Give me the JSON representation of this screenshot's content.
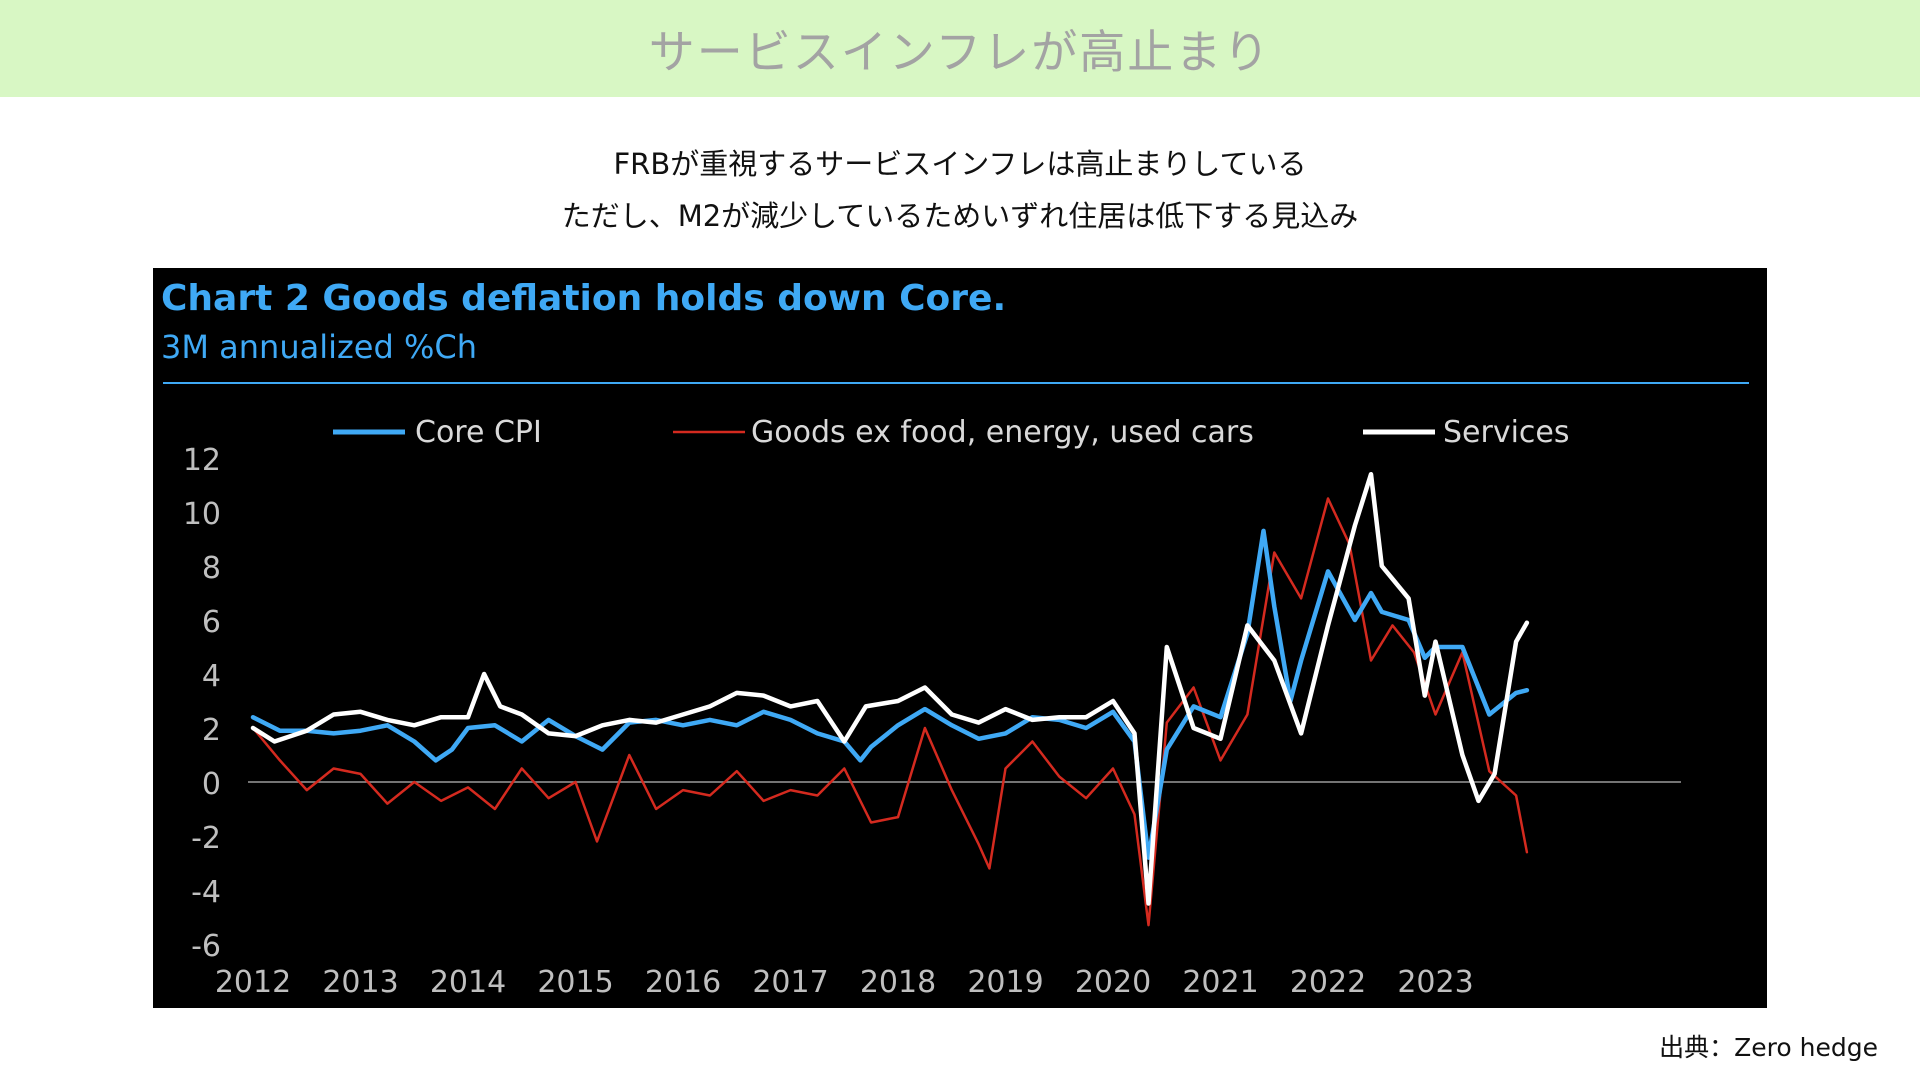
{
  "banner": {
    "title": "サービスインフレが高止まり"
  },
  "subtitles": {
    "line1": "FRBが重視するサービスインフレは高止まりしている",
    "line2": "ただし、M2が減少しているためいずれ住居は低下する見込み"
  },
  "source": "出典：Zero hedge",
  "colors": {
    "banner_bg": "#d8f7c4",
    "chart_bg": "#000000",
    "title_blue": "#3fa9f5",
    "core_cpi": "#3fa9f5",
    "goods": "#d42a1f",
    "services": "#ffffff"
  },
  "chart_data": {
    "type": "line",
    "title": "Chart 2 Goods deflation holds down Core.",
    "subtitle": "3M annualized %Ch",
    "ylim": [
      -6,
      12
    ],
    "yticks": [
      "12",
      "10",
      "8",
      "6",
      "4",
      "2",
      "0",
      "-2",
      "-4",
      "-6"
    ],
    "xlim": [
      2012,
      2024
    ],
    "xticks": [
      "2012",
      "2013",
      "2014",
      "2015",
      "2016",
      "2017",
      "2018",
      "2019",
      "2020",
      "2021",
      "2022",
      "2023"
    ],
    "legend_position": "top",
    "grid": false,
    "zero_line": true,
    "series": [
      {
        "name": "Core CPI",
        "color": "#3fa9f5",
        "points": [
          [
            2012.0,
            2.4
          ],
          [
            2012.25,
            1.9
          ],
          [
            2012.5,
            1.9
          ],
          [
            2012.75,
            1.8
          ],
          [
            2013.0,
            1.9
          ],
          [
            2013.25,
            2.1
          ],
          [
            2013.5,
            1.5
          ],
          [
            2013.7,
            0.8
          ],
          [
            2013.85,
            1.2
          ],
          [
            2014.0,
            2.0
          ],
          [
            2014.25,
            2.1
          ],
          [
            2014.5,
            1.5
          ],
          [
            2014.75,
            2.3
          ],
          [
            2015.0,
            1.7
          ],
          [
            2015.25,
            1.2
          ],
          [
            2015.5,
            2.2
          ],
          [
            2015.75,
            2.3
          ],
          [
            2016.0,
            2.1
          ],
          [
            2016.25,
            2.3
          ],
          [
            2016.5,
            2.1
          ],
          [
            2016.75,
            2.6
          ],
          [
            2017.0,
            2.3
          ],
          [
            2017.25,
            1.8
          ],
          [
            2017.5,
            1.5
          ],
          [
            2017.65,
            0.8
          ],
          [
            2017.75,
            1.3
          ],
          [
            2018.0,
            2.1
          ],
          [
            2018.25,
            2.7
          ],
          [
            2018.5,
            2.1
          ],
          [
            2018.75,
            1.6
          ],
          [
            2019.0,
            1.8
          ],
          [
            2019.25,
            2.4
          ],
          [
            2019.5,
            2.3
          ],
          [
            2019.75,
            2.0
          ],
          [
            2020.0,
            2.6
          ],
          [
            2020.2,
            1.5
          ],
          [
            2020.33,
            -2.8
          ],
          [
            2020.5,
            1.2
          ],
          [
            2020.75,
            2.8
          ],
          [
            2021.0,
            2.4
          ],
          [
            2021.25,
            5.5
          ],
          [
            2021.4,
            9.3
          ],
          [
            2021.5,
            6.5
          ],
          [
            2021.65,
            3.0
          ],
          [
            2021.75,
            4.5
          ],
          [
            2022.0,
            7.8
          ],
          [
            2022.25,
            6.0
          ],
          [
            2022.4,
            7.0
          ],
          [
            2022.5,
            6.3
          ],
          [
            2022.75,
            6.0
          ],
          [
            2022.9,
            4.6
          ],
          [
            2023.0,
            5.0
          ],
          [
            2023.25,
            5.0
          ],
          [
            2023.5,
            2.5
          ],
          [
            2023.75,
            3.3
          ],
          [
            2023.85,
            3.4
          ]
        ]
      },
      {
        "name": "Goods ex food, energy, used cars",
        "color": "#d42a1f",
        "points": [
          [
            2012.0,
            2.0
          ],
          [
            2012.25,
            0.8
          ],
          [
            2012.5,
            -0.3
          ],
          [
            2012.75,
            0.5
          ],
          [
            2013.0,
            0.3
          ],
          [
            2013.25,
            -0.8
          ],
          [
            2013.5,
            0.0
          ],
          [
            2013.75,
            -0.7
          ],
          [
            2014.0,
            -0.2
          ],
          [
            2014.25,
            -1.0
          ],
          [
            2014.5,
            0.5
          ],
          [
            2014.75,
            -0.6
          ],
          [
            2015.0,
            0.0
          ],
          [
            2015.2,
            -2.2
          ],
          [
            2015.5,
            1.0
          ],
          [
            2015.75,
            -1.0
          ],
          [
            2016.0,
            -0.3
          ],
          [
            2016.25,
            -0.5
          ],
          [
            2016.5,
            0.4
          ],
          [
            2016.75,
            -0.7
          ],
          [
            2017.0,
            -0.3
          ],
          [
            2017.25,
            -0.5
          ],
          [
            2017.5,
            0.5
          ],
          [
            2017.75,
            -1.5
          ],
          [
            2018.0,
            -1.3
          ],
          [
            2018.25,
            2.0
          ],
          [
            2018.5,
            -0.3
          ],
          [
            2018.75,
            -2.3
          ],
          [
            2018.85,
            -3.2
          ],
          [
            2019.0,
            0.5
          ],
          [
            2019.25,
            1.5
          ],
          [
            2019.5,
            0.2
          ],
          [
            2019.75,
            -0.6
          ],
          [
            2020.0,
            0.5
          ],
          [
            2020.2,
            -1.2
          ],
          [
            2020.33,
            -5.3
          ],
          [
            2020.5,
            2.2
          ],
          [
            2020.75,
            3.5
          ],
          [
            2021.0,
            0.8
          ],
          [
            2021.25,
            2.5
          ],
          [
            2021.5,
            8.5
          ],
          [
            2021.75,
            6.8
          ],
          [
            2022.0,
            10.5
          ],
          [
            2022.2,
            8.8
          ],
          [
            2022.4,
            4.5
          ],
          [
            2022.6,
            5.8
          ],
          [
            2022.8,
            4.8
          ],
          [
            2023.0,
            2.5
          ],
          [
            2023.25,
            4.8
          ],
          [
            2023.5,
            0.4
          ],
          [
            2023.75,
            -0.5
          ],
          [
            2023.85,
            -2.6
          ]
        ]
      },
      {
        "name": "Services",
        "color": "#ffffff",
        "points": [
          [
            2012.0,
            2.0
          ],
          [
            2012.2,
            1.5
          ],
          [
            2012.5,
            1.9
          ],
          [
            2012.75,
            2.5
          ],
          [
            2013.0,
            2.6
          ],
          [
            2013.25,
            2.3
          ],
          [
            2013.5,
            2.1
          ],
          [
            2013.75,
            2.4
          ],
          [
            2014.0,
            2.4
          ],
          [
            2014.15,
            4.0
          ],
          [
            2014.3,
            2.8
          ],
          [
            2014.5,
            2.5
          ],
          [
            2014.75,
            1.8
          ],
          [
            2015.0,
            1.7
          ],
          [
            2015.25,
            2.1
          ],
          [
            2015.5,
            2.3
          ],
          [
            2015.75,
            2.2
          ],
          [
            2016.0,
            2.5
          ],
          [
            2016.25,
            2.8
          ],
          [
            2016.5,
            3.3
          ],
          [
            2016.75,
            3.2
          ],
          [
            2017.0,
            2.8
          ],
          [
            2017.25,
            3.0
          ],
          [
            2017.5,
            1.5
          ],
          [
            2017.7,
            2.8
          ],
          [
            2018.0,
            3.0
          ],
          [
            2018.25,
            3.5
          ],
          [
            2018.5,
            2.5
          ],
          [
            2018.75,
            2.2
          ],
          [
            2019.0,
            2.7
          ],
          [
            2019.25,
            2.3
          ],
          [
            2019.5,
            2.4
          ],
          [
            2019.75,
            2.4
          ],
          [
            2020.0,
            3.0
          ],
          [
            2020.2,
            1.8
          ],
          [
            2020.33,
            -4.5
          ],
          [
            2020.5,
            5.0
          ],
          [
            2020.75,
            2.0
          ],
          [
            2021.0,
            1.6
          ],
          [
            2021.25,
            5.8
          ],
          [
            2021.5,
            4.5
          ],
          [
            2021.75,
            1.8
          ],
          [
            2022.0,
            5.8
          ],
          [
            2022.25,
            9.5
          ],
          [
            2022.4,
            11.4
          ],
          [
            2022.5,
            8.0
          ],
          [
            2022.75,
            6.8
          ],
          [
            2022.9,
            3.2
          ],
          [
            2023.0,
            5.2
          ],
          [
            2023.25,
            1.0
          ],
          [
            2023.4,
            -0.7
          ],
          [
            2023.55,
            0.3
          ],
          [
            2023.75,
            5.2
          ],
          [
            2023.85,
            5.9
          ]
        ]
      }
    ]
  }
}
